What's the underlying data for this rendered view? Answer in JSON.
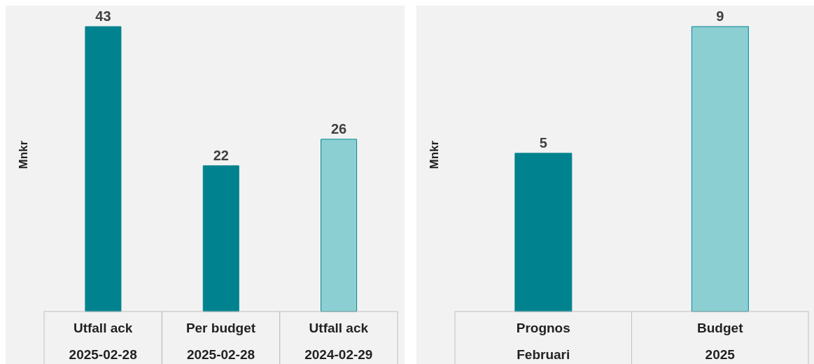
{
  "chart_data": [
    {
      "type": "bar",
      "ylabel": "Mnkr",
      "categories": [
        "Utfall ack\n2025-02-28",
        "Per budget\n2025-02-28",
        "Utfall ack\n2024-02-29"
      ],
      "values": [
        43,
        22,
        26
      ],
      "colors": [
        "#00838f",
        "#00838f",
        "#8ccfd3"
      ],
      "data_labels": true,
      "tick_labels": "x",
      "grid": false,
      "legend": false
    },
    {
      "type": "bar",
      "ylabel": "Mnkr",
      "categories": [
        "Prognos\nFebruari",
        "Budget\n2025"
      ],
      "values": [
        5,
        9
      ],
      "colors": [
        "#00838f",
        "#8ccfd3"
      ],
      "data_labels": true,
      "tick_labels": "x",
      "grid": false,
      "legend": false
    }
  ]
}
